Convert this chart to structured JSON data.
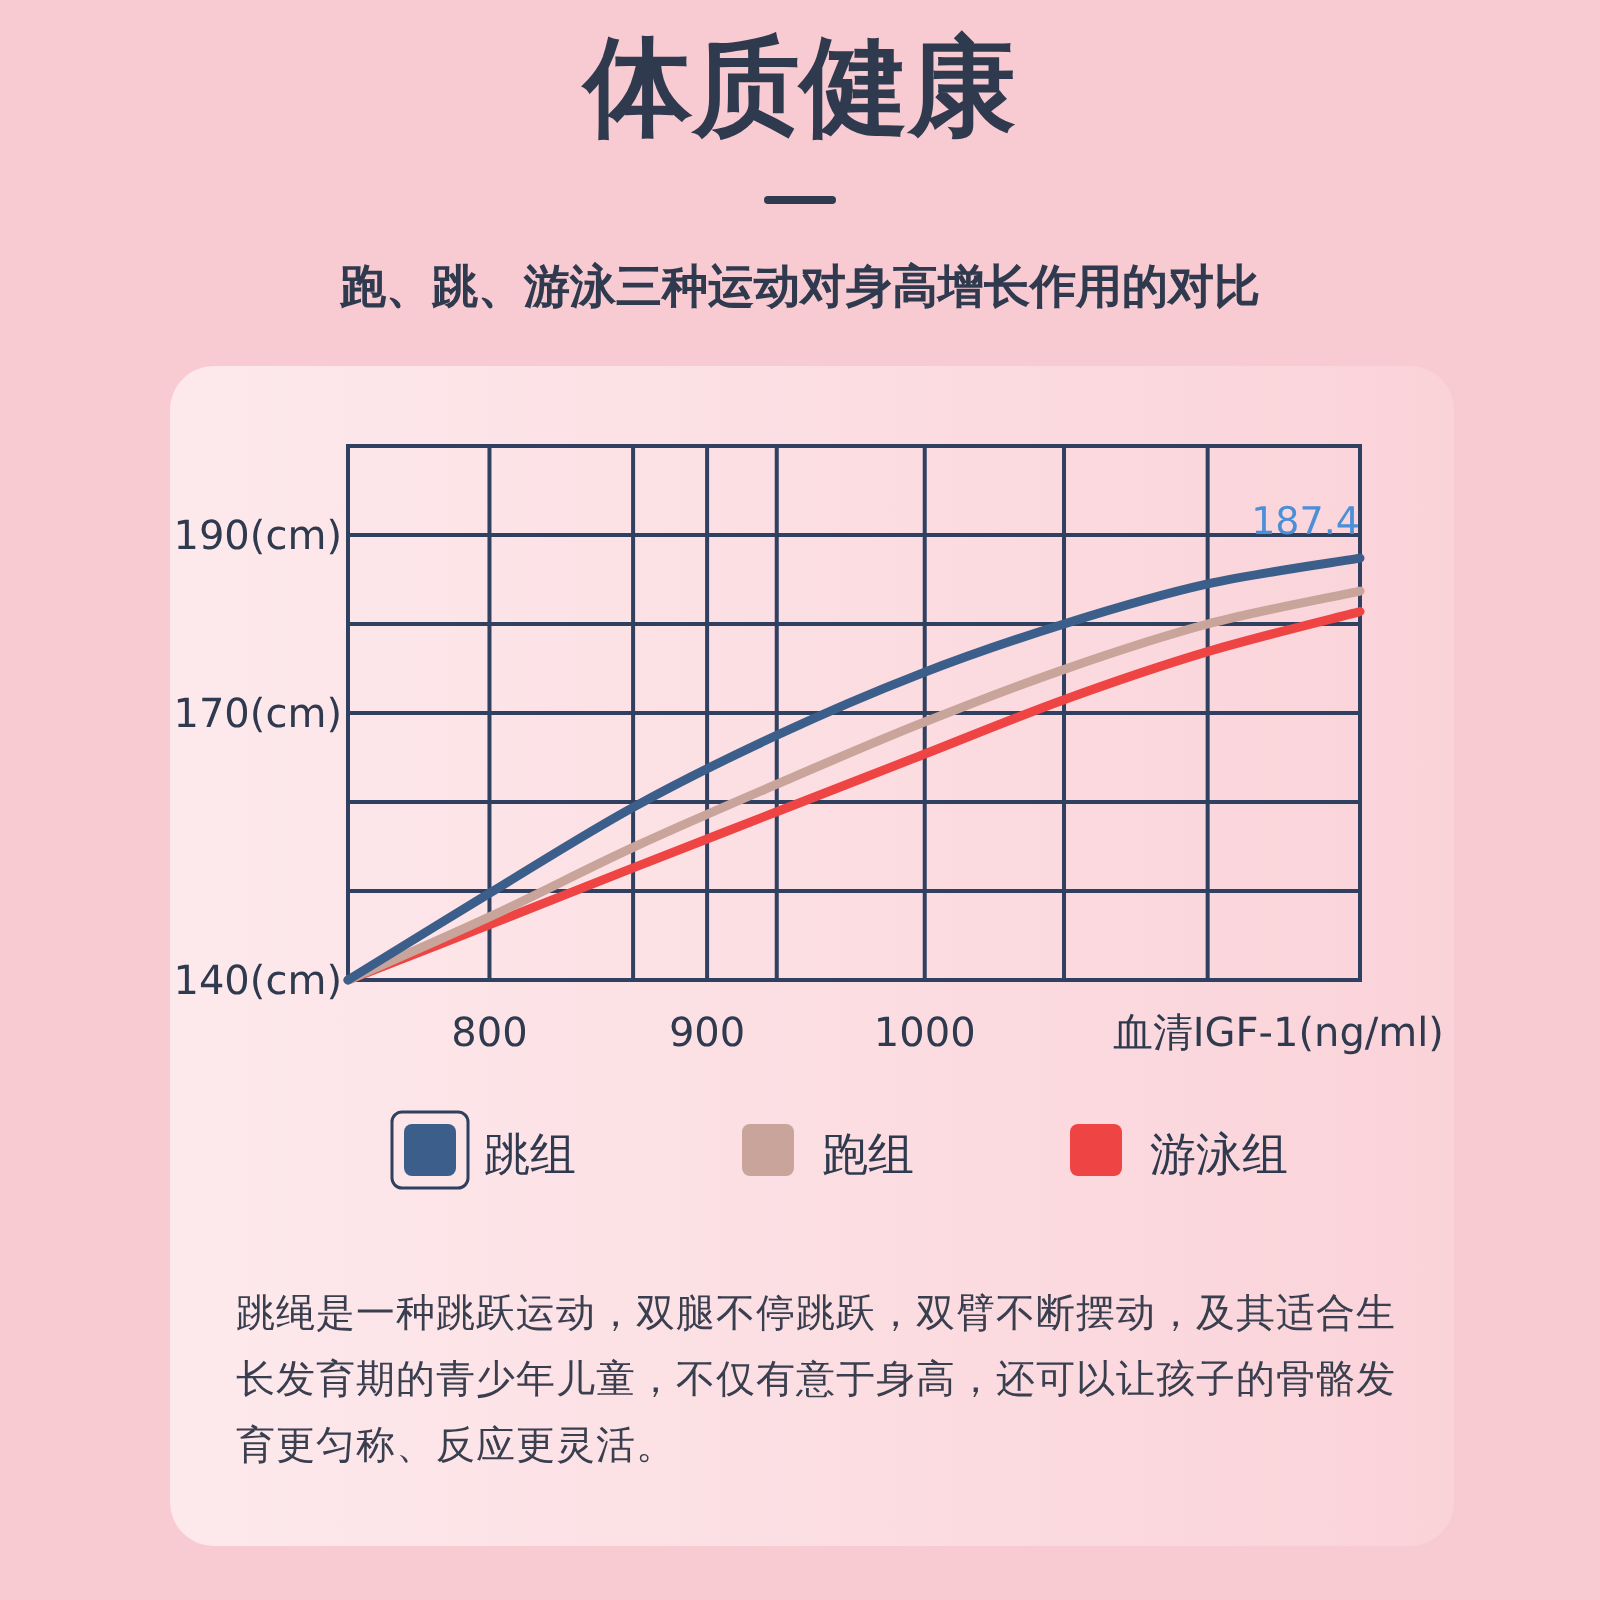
{
  "chart_data": {
    "type": "line",
    "title": "体质健康",
    "subtitle": "跑、跳、游泳三种运动对身高增长作用的对比",
    "xlabel": "血清IGF-1(ng/ml)",
    "x": [
      735,
      801,
      866,
      932,
      998,
      1064,
      1130,
      1200
    ],
    "series": [
      {
        "name": "跳组",
        "color": "#3b5f8a",
        "values": [
          140,
          149.9,
          159.4,
          167.5,
          174.4,
          180,
          184.5,
          187.4
        ],
        "value_labels": [
          null,
          null,
          null,
          null,
          null,
          null,
          null,
          "187.4"
        ]
      },
      {
        "name": "跑组",
        "color": "#c9a49a",
        "values": [
          140,
          147.2,
          154.9,
          162,
          168.8,
          174.9,
          180,
          183.7
        ]
      },
      {
        "name": "游泳组",
        "color": "#ef4444",
        "values": [
          140,
          146.3,
          152.6,
          158.9,
          165.2,
          171.5,
          176.9,
          181.4
        ]
      }
    ],
    "xlim": [
      735,
      1200
    ],
    "ylim": [
      140,
      200
    ],
    "xticks": [
      800,
      900,
      1000,
      {
        "value": 866,
        "label": null
      },
      {
        "value": 932,
        "label": null
      },
      {
        "value": 1064,
        "label": null
      },
      {
        "value": 1130,
        "label": null
      }
    ],
    "yticks": [
      {
        "value": 140,
        "label": "140(cm)"
      },
      {
        "value": 150,
        "label": null
      },
      {
        "value": 160,
        "label": null
      },
      {
        "value": 170,
        "label": "170(cm)"
      },
      {
        "value": 180,
        "label": null
      },
      {
        "value": 190,
        "label": "190(cm)"
      },
      {
        "value": 200,
        "label": null
      }
    ],
    "grid": true,
    "legend": "bottom",
    "marker": "none",
    "line_style": "solid",
    "annotations": [
      "跳绳是一种跳跃运动，双腿不停跳跃，双臂不断摆动，及其适合生长发育期的青少年儿童，不仅有意于身高，还可以让孩子的骨骼发育更匀称、反应更灵活。"
    ]
  }
}
